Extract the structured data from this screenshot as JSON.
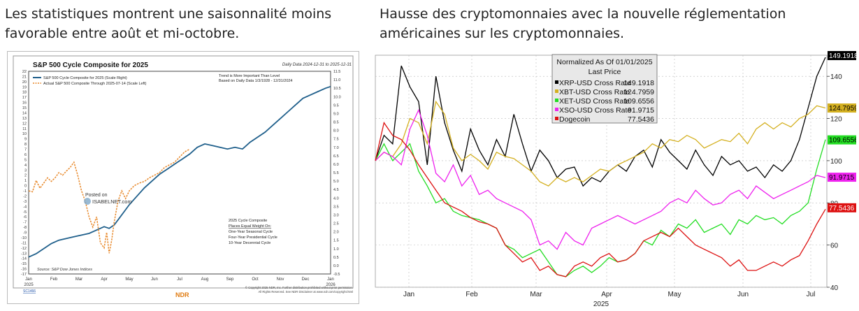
{
  "captions": {
    "left": "Les statistiques montrent une saisonnalité moins favorable entre août et mi-octobre.",
    "right": "Hausse des cryptomonnaies avec la nouvelle réglementation américaines sur les cryptomonnaies."
  },
  "colors": {
    "sp_cycle": "#1f5f8b",
    "sp_actual": "#e8892b",
    "xrp": "#000000",
    "xbt": "#d4b020",
    "xet": "#22dd22",
    "xso": "#ee22ee",
    "doge": "#dd1111"
  },
  "chart_data": [
    {
      "type": "line",
      "title": "S&P 500 Cycle Composite for 2025",
      "date_range": "Daily Data 2024-12-31 to 2025-12-31",
      "note_right": [
        "Trend is More Important Than Level",
        "Based on Daily Data 1/3/1928 - 12/31/2024"
      ],
      "note_box": [
        "2025 Cycle Composite",
        "Places Equal Weight On:",
        "One-Year Seasonal Cycle",
        "Four-Year Presidential Cycle",
        "10-Year Decennial Cycle"
      ],
      "watermark": [
        "Posted on",
        "ISABELNET.com"
      ],
      "source": "Source:  S&P Dow Jones Indices",
      "footer_left": "SC1466",
      "footer_right": [
        "© Copyright 2025 NDR, Inc. Further distribution prohibited without prior permission.",
        "All Rights Reserved. See NDR Disclaimer at www.ndr.com/copyright.html"
      ],
      "footer_logo": "NDR",
      "x_labels": [
        "Jan",
        "Feb",
        "Mar",
        "Apr",
        "May",
        "Jun",
        "Jul",
        "Aug",
        "Sep",
        "Oct",
        "Nov",
        "Dec",
        "Jan"
      ],
      "x_year_left": "2025",
      "x_year_right": "2026",
      "ylim_left": [
        -17,
        22
      ],
      "ylim_right": [
        -0.5,
        11.5
      ],
      "y_ticks_left": [
        22,
        21,
        20,
        19,
        18,
        17,
        16,
        15,
        14,
        13,
        12,
        11,
        10,
        9,
        8,
        7,
        6,
        5,
        4,
        3,
        2,
        1,
        0,
        -1,
        -2,
        -3,
        -4,
        -5,
        -6,
        -7,
        -8,
        -9,
        -10,
        -11,
        -12,
        -13,
        -14,
        -15,
        -16,
        -17
      ],
      "y_ticks_right": [
        "11.5",
        "11.0",
        "10.5",
        "10.0",
        "9.5",
        "9.0",
        "8.5",
        "8.0",
        "7.5",
        "7.0",
        "6.5",
        "6.0",
        "5.5",
        "5.0",
        "4.5",
        "4.0",
        "3.5",
        "3.0",
        "2.5",
        "2.0",
        "1.5",
        "1.0",
        "0.5",
        "0.0",
        "-0.5"
      ],
      "series": [
        {
          "name": "S&P 500 Cycle Composite for 2025 (Scale Right)",
          "axis": "right",
          "x": [
            0,
            0.3,
            0.6,
            0.9,
            1.2,
            1.5,
            1.8,
            2.1,
            2.4,
            2.7,
            3.0,
            3.2,
            3.4,
            3.6,
            3.8,
            4.0,
            4.3,
            4.6,
            4.9,
            5.2,
            5.5,
            5.8,
            6.1,
            6.4,
            6.7,
            7.0,
            7.3,
            7.6,
            7.9,
            8.2,
            8.5,
            8.8,
            9.1,
            9.4,
            9.7,
            10.0,
            10.3,
            10.6,
            10.9,
            11.2,
            11.5,
            11.8,
            12.0
          ],
          "values": [
            0.5,
            0.7,
            1.0,
            1.3,
            1.5,
            1.6,
            1.7,
            1.8,
            1.9,
            2.1,
            2.3,
            2.2,
            2.4,
            2.8,
            3.2,
            3.6,
            4.1,
            4.6,
            5.0,
            5.4,
            5.7,
            6.0,
            6.3,
            6.6,
            7.0,
            7.2,
            7.1,
            7.0,
            6.9,
            7.0,
            6.9,
            7.3,
            7.6,
            7.9,
            8.3,
            8.7,
            9.1,
            9.5,
            9.9,
            10.1,
            10.3,
            10.5,
            10.6
          ]
        },
        {
          "name": "Actual S&P 500 Composite Through 2025-07-14 (Scale Left)",
          "axis": "left",
          "x": [
            0,
            0.15,
            0.3,
            0.45,
            0.6,
            0.75,
            0.9,
            1.05,
            1.2,
            1.35,
            1.5,
            1.65,
            1.8,
            1.95,
            2.1,
            2.25,
            2.4,
            2.55,
            2.7,
            2.85,
            3.0,
            3.1,
            3.2,
            3.3,
            3.4,
            3.55,
            3.7,
            3.85,
            4.0,
            4.2,
            4.4,
            4.6,
            4.8,
            5.0,
            5.2,
            5.4,
            5.6,
            5.8,
            6.0,
            6.2,
            6.4
          ],
          "values": [
            -1.0,
            -1.2,
            1.0,
            -0.5,
            0.5,
            1.5,
            0.8,
            1.5,
            2.5,
            2.0,
            2.8,
            3.5,
            4.5,
            2.0,
            -1.0,
            -3.0,
            -6.0,
            -8.0,
            -6.0,
            -11.0,
            -12.0,
            -9.0,
            -13.0,
            -10.5,
            -7.0,
            -3.0,
            -1.0,
            -2.5,
            -1.0,
            0.0,
            0.5,
            0.8,
            1.5,
            2.0,
            2.5,
            3.5,
            4.0,
            4.5,
            5.5,
            6.5,
            7.0
          ]
        }
      ]
    },
    {
      "type": "line",
      "title": "Normalized As Of 01/01/2025",
      "subtitle": "Last Price",
      "x_labels": [
        "Jan",
        "Feb",
        "Mar",
        "Apr",
        "May",
        "Jun",
        "Jul"
      ],
      "x_year": "2025",
      "ylim": [
        40,
        150
      ],
      "y_ticks": [
        140,
        120,
        100,
        80,
        60,
        40
      ],
      "series": [
        {
          "name": "XRP-USD Cross Rate",
          "last": "149.1918",
          "values": [
            100,
            112,
            108,
            145,
            135,
            128,
            98,
            140,
            118,
            105,
            95,
            115,
            105,
            98,
            110,
            102,
            122,
            108,
            95,
            105,
            100,
            92,
            96,
            97,
            88,
            92,
            90,
            95,
            98,
            95,
            102,
            105,
            97,
            110,
            104,
            100,
            96,
            105,
            98,
            93,
            102,
            98,
            100,
            95,
            97,
            92,
            98,
            95,
            100,
            110,
            125,
            140,
            149
          ]
        },
        {
          "name": "XBT-USD Cross Rate",
          "last": "124.7959",
          "values": [
            100,
            104,
            102,
            108,
            120,
            118,
            108,
            128,
            122,
            106,
            100,
            103,
            100,
            96,
            104,
            102,
            101,
            98,
            95,
            90,
            88,
            92,
            90,
            92,
            90,
            93,
            96,
            95,
            98,
            100,
            102,
            104,
            108,
            106,
            110,
            109,
            112,
            110,
            106,
            108,
            110,
            109,
            113,
            108,
            115,
            118,
            115,
            118,
            116,
            120,
            122,
            126,
            125
          ]
        },
        {
          "name": "XET-USD Cross Rate",
          "last": "109.6556",
          "values": [
            100,
            108,
            100,
            104,
            108,
            95,
            88,
            80,
            82,
            76,
            74,
            73,
            72,
            70,
            68,
            60,
            58,
            54,
            56,
            58,
            52,
            46,
            45,
            48,
            50,
            47,
            50,
            54,
            52,
            53,
            56,
            62,
            60,
            67,
            64,
            70,
            68,
            72,
            66,
            68,
            70,
            65,
            72,
            70,
            74,
            72,
            73,
            70,
            74,
            76,
            80,
            96,
            110
          ]
        },
        {
          "name": "XSO-USD Cross Rate",
          "last": "91.9715",
          "values": [
            100,
            104,
            102,
            98,
            115,
            124,
            112,
            94,
            90,
            98,
            88,
            93,
            84,
            86,
            82,
            80,
            78,
            76,
            72,
            60,
            62,
            58,
            66,
            62,
            60,
            68,
            70,
            72,
            74,
            72,
            70,
            72,
            74,
            76,
            80,
            82,
            80,
            86,
            82,
            79,
            80,
            84,
            86,
            82,
            88,
            85,
            82,
            84,
            86,
            88,
            90,
            93,
            92
          ]
        },
        {
          "name": "Dogecoin",
          "last": "77.5436",
          "values": [
            100,
            118,
            112,
            110,
            105,
            98,
            92,
            86,
            80,
            78,
            76,
            73,
            71,
            70,
            68,
            60,
            56,
            52,
            54,
            48,
            50,
            46,
            45,
            50,
            52,
            50,
            54,
            56,
            52,
            53,
            56,
            62,
            64,
            66,
            64,
            68,
            64,
            60,
            58,
            56,
            54,
            50,
            53,
            48,
            48,
            50,
            52,
            50,
            53,
            55,
            62,
            70,
            77
          ]
        }
      ],
      "end_labels": [
        "149.1918",
        "124.7959",
        "109.6556",
        "91.9715",
        "77.5436"
      ]
    }
  ]
}
